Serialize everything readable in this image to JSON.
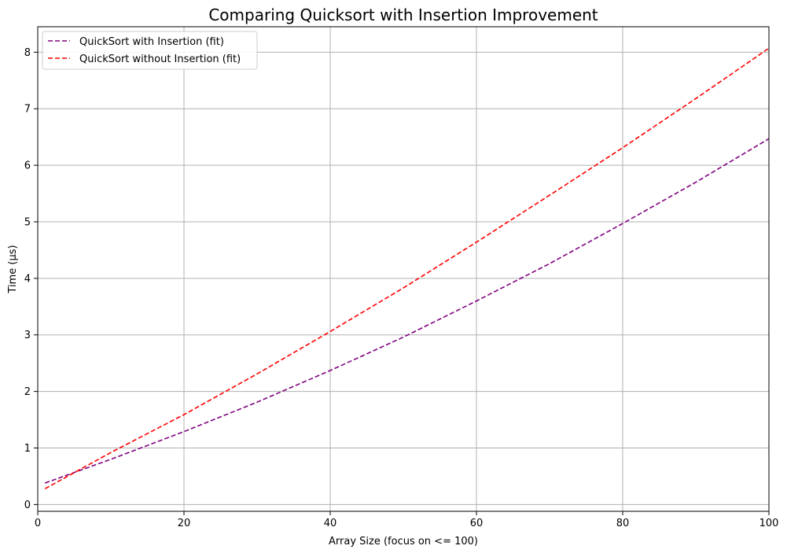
{
  "chart_data": {
    "type": "line",
    "title": "Comparing Quicksort with Insertion Improvement",
    "xlabel": "Array Size (focus on <= 100)",
    "ylabel": "Time (µs)",
    "xlim": [
      0,
      100
    ],
    "ylim": [
      -0.12,
      8.45
    ],
    "xticks": [
      "0",
      "20",
      "40",
      "60",
      "80",
      "100"
    ],
    "yticks": [
      "0",
      "1",
      "2",
      "3",
      "4",
      "5",
      "6",
      "7",
      "8"
    ],
    "grid": true,
    "legend_position": "upper-left",
    "x": [
      1,
      10,
      20,
      30,
      40,
      50,
      60,
      70,
      80,
      90,
      100
    ],
    "series": [
      {
        "name": "QuickSort with Insertion (fit)",
        "color": "#800080",
        "style": "dashed",
        "values": [
          0.38,
          0.8,
          1.29,
          1.81,
          2.37,
          2.96,
          3.6,
          4.26,
          4.97,
          5.7,
          6.47
        ]
      },
      {
        "name": "QuickSort without Insertion (fit)",
        "color": "#ff0000",
        "style": "dashed",
        "values": [
          0.28,
          0.92,
          1.59,
          2.31,
          3.06,
          3.83,
          4.64,
          5.47,
          6.31,
          7.18,
          8.07
        ]
      }
    ]
  }
}
